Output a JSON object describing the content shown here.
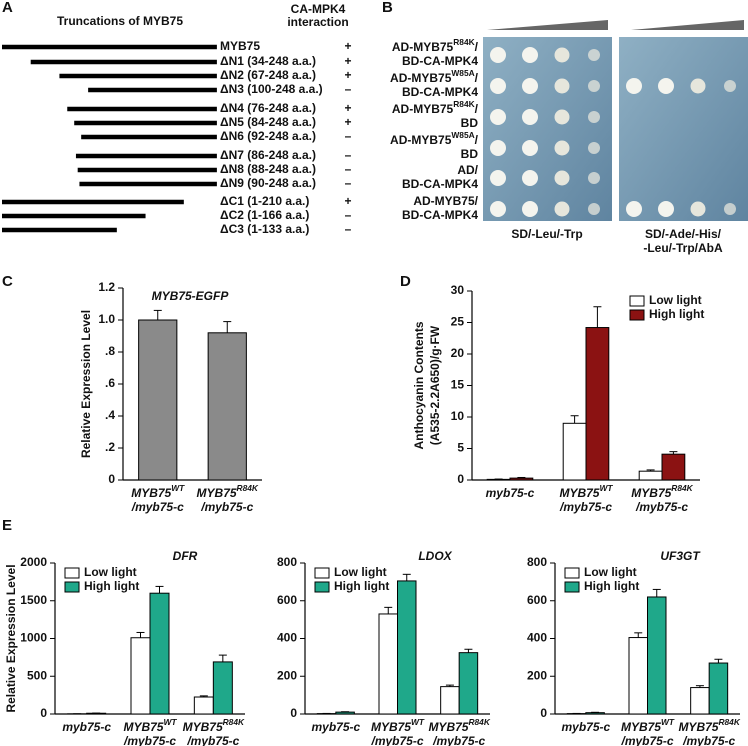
{
  "panel_labels": [
    "A",
    "B",
    "C",
    "D",
    "E"
  ],
  "truncations": {
    "title": "Truncations of MYB75",
    "interaction_header": [
      "CA-MPK4",
      "interaction"
    ],
    "rows": [
      {
        "label": "MYB75",
        "start": 1,
        "end": 248,
        "interaction": "+"
      },
      {
        "label": "ΔN1 (34-248 a.a.)",
        "start": 34,
        "end": 248,
        "interaction": "+"
      },
      {
        "label": "ΔN2 (67-248 a.a.)",
        "start": 67,
        "end": 248,
        "interaction": "+"
      },
      {
        "label": "ΔN3 (100-248 a.a.)",
        "start": 100,
        "end": 248,
        "interaction": "–"
      },
      {
        "label": "ΔN4 (76-248 a.a.)",
        "start": 76,
        "end": 248,
        "interaction": "+"
      },
      {
        "label": "ΔN5 (84-248 a.a.)",
        "start": 84,
        "end": 248,
        "interaction": "+"
      },
      {
        "label": "ΔN6 (92-248 a.a.)",
        "start": 92,
        "end": 248,
        "interaction": "–"
      },
      {
        "label": "ΔN7 (86-248 a.a.)",
        "start": 86,
        "end": 248,
        "interaction": "–"
      },
      {
        "label": "ΔN8 (88-248 a.a.)",
        "start": 88,
        "end": 248,
        "interaction": "–"
      },
      {
        "label": "ΔN9 (90-248 a.a.)",
        "start": 90,
        "end": 248,
        "interaction": "–"
      },
      {
        "label": "ΔC1 (1-210 a.a.)",
        "start": 1,
        "end": 210,
        "interaction": "+"
      },
      {
        "label": "ΔC2 (1-166 a.a.)",
        "start": 1,
        "end": 166,
        "interaction": "–"
      },
      {
        "label": "ΔC3 (1-133 a.a.)",
        "start": 1,
        "end": 133,
        "interaction": "–"
      }
    ]
  },
  "yeast_two_hybrid": {
    "labels": [
      [
        [
          "AD-MYB75",
          {
            "sup": "R84K"
          },
          "/"
        ],
        [
          "BD-CA-MPK4"
        ]
      ],
      [
        [
          "AD-MYB75",
          {
            "sup": "W85A"
          },
          "/"
        ],
        [
          "BD-CA-MPK4"
        ]
      ],
      [
        [
          "AD-MYB75",
          {
            "sup": "R84K"
          },
          "/"
        ],
        [
          "BD"
        ]
      ],
      [
        [
          "AD-MYB75",
          {
            "sup": "W85A"
          },
          "/"
        ],
        [
          "BD"
        ]
      ],
      [
        [
          "AD/"
        ],
        [
          "BD-CA-MPK4"
        ]
      ],
      [
        [
          "AD-MYB75/"
        ],
        [
          "BD-CA-MPK4"
        ]
      ]
    ],
    "media": [
      [
        "SD/-Leu/-Trp"
      ],
      [
        "SD/-Ade/-His/",
        "-Leu/-Trp/AbA"
      ]
    ]
  },
  "chart_data": [
    {
      "type": "bar",
      "title": "MYB75-EGFP",
      "y_label": [
        "Relative Expression Level"
      ],
      "categories": [
        [
          [
            "MYB75",
            {
              "sup": "WT"
            }
          ],
          [
            "/myb75-c"
          ]
        ],
        [
          [
            "MYB75",
            {
              "sup": "R84K"
            }
          ],
          [
            "/myb75-c"
          ]
        ]
      ],
      "values": [
        1.0,
        0.92
      ],
      "errors": [
        0.06,
        0.07
      ],
      "color": "#8a8a8a",
      "ylim": [
        0,
        1.2
      ],
      "yticks": [
        0,
        {
          "value": 0.2,
          "label": ".2"
        },
        {
          "value": 0.4,
          "label": ".4"
        },
        {
          "value": 0.6,
          "label": ".6"
        },
        {
          "value": 0.8,
          "label": ".8"
        },
        {
          "value": 1.0,
          "label": "1.0"
        },
        1.2
      ]
    },
    {
      "type": "bar",
      "y_label": [
        "Anthocyanin Contents",
        "(A535-2.2A650)/g·FW"
      ],
      "categories": [
        "myb75-c",
        [
          [
            "MYB75",
            {
              "sup": "WT"
            }
          ],
          [
            "/myb75-c"
          ]
        ],
        [
          [
            "MYB75",
            {
              "sup": "R84K"
            }
          ],
          [
            "/myb75-c"
          ]
        ]
      ],
      "series": [
        {
          "name": "Low light",
          "color": "#ffffff",
          "values": [
            0.1,
            9.0,
            1.4
          ],
          "errors": [
            0.05,
            1.2,
            0.2
          ]
        },
        {
          "name": "High light",
          "color": "#8b1212",
          "values": [
            0.3,
            24.2,
            4.1
          ],
          "errors": [
            0.1,
            3.3,
            0.4
          ]
        }
      ],
      "ylim": [
        0,
        30
      ],
      "yticks": [
        0,
        5,
        10,
        15,
        20,
        25,
        30
      ],
      "legend": "upper right"
    },
    {
      "type": "bar",
      "title": "DFR",
      "y_label": [
        "Relative Expression Level"
      ],
      "categories": [
        "myb75-c",
        [
          [
            "MYB75",
            {
              "sup": "WT"
            }
          ],
          [
            "/myb75-c"
          ]
        ],
        [
          [
            "MYB75",
            {
              "sup": "R84K"
            }
          ],
          [
            "/myb75-c"
          ]
        ]
      ],
      "series": [
        {
          "name": "Low light",
          "color": "#ffffff",
          "values": [
            2,
            1010,
            225
          ],
          "errors": [
            1,
            70,
            15
          ]
        },
        {
          "name": "High light",
          "color": "#1fa88a",
          "values": [
            10,
            1600,
            690
          ],
          "errors": [
            2,
            90,
            90
          ]
        }
      ],
      "ylim": [
        0,
        2000
      ],
      "yticks": [
        0,
        500,
        1000,
        1500,
        2000
      ],
      "legend": "upper left"
    },
    {
      "type": "bar",
      "title": "LDOX",
      "categories": [
        "myb75-c",
        [
          [
            "MYB75",
            {
              "sup": "WT"
            }
          ],
          [
            "/myb75-c"
          ]
        ],
        [
          [
            "MYB75",
            {
              "sup": "R84K"
            }
          ],
          [
            "/myb75-c"
          ]
        ]
      ],
      "series": [
        {
          "name": "Low light",
          "color": "#ffffff",
          "values": [
            2,
            530,
            145
          ],
          "errors": [
            1,
            35,
            8
          ]
        },
        {
          "name": "High light",
          "color": "#1fa88a",
          "values": [
            10,
            705,
            325
          ],
          "errors": [
            2,
            35,
            18
          ]
        }
      ],
      "ylim": [
        0,
        800
      ],
      "yticks": [
        0,
        200,
        400,
        600,
        800
      ],
      "legend": "upper left"
    },
    {
      "type": "bar",
      "title": "UF3GT",
      "categories": [
        "myb75-c",
        [
          [
            "MYB75",
            {
              "sup": "WT"
            }
          ],
          [
            "/myb75-c"
          ]
        ],
        [
          [
            "MYB75",
            {
              "sup": "R84K"
            }
          ],
          [
            "/myb75-c"
          ]
        ]
      ],
      "series": [
        {
          "name": "Low light",
          "color": "#ffffff",
          "values": [
            2,
            405,
            140
          ],
          "errors": [
            1,
            25,
            10
          ]
        },
        {
          "name": "High light",
          "color": "#1fa88a",
          "values": [
            7,
            620,
            270
          ],
          "errors": [
            2,
            40,
            20
          ]
        }
      ],
      "ylim": [
        0,
        800
      ],
      "yticks": [
        0,
        200,
        400,
        600,
        800
      ],
      "legend": "upper left"
    }
  ]
}
